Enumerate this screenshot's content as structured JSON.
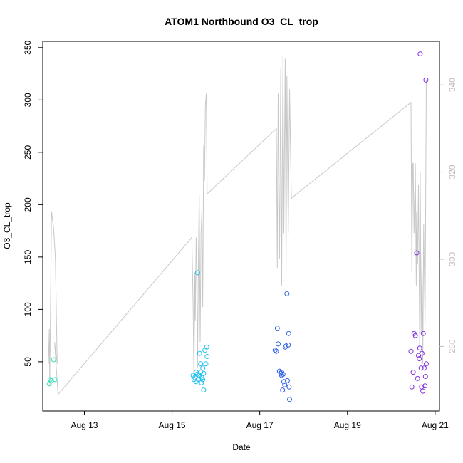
{
  "chart_data": {
    "type": "scatter",
    "title": "ATOM1 Northbound O3_CL_trop",
    "xlabel": "Date",
    "ylabel": "O3_CL_trop",
    "x_unit": "day of August 2016",
    "xlim": [
      12.05,
      21.1
    ],
    "ylim": [
      3,
      356
    ],
    "y2lim": [
      265.2,
      350.0
    ],
    "x_ticks": [
      {
        "value": 13,
        "label": "Aug 13"
      },
      {
        "value": 15,
        "label": "Aug 15"
      },
      {
        "value": 17,
        "label": "Aug 17"
      },
      {
        "value": 19,
        "label": "Aug 19"
      },
      {
        "value": 21,
        "label": "Aug 21"
      }
    ],
    "y_ticks": [
      50,
      100,
      150,
      200,
      250,
      300,
      350
    ],
    "y2_ticks": [
      280,
      300,
      320,
      340
    ],
    "grid": false,
    "colors": {
      "line": "#c8c8c8",
      "axis": "#000000",
      "right_axis": "#bdbdbd"
    },
    "scatter_series": [
      {
        "color": "#33e0b8",
        "points": [
          [
            12.2,
            29
          ],
          [
            12.22,
            33
          ],
          [
            12.25,
            32
          ],
          [
            12.3,
            52
          ],
          [
            12.33,
            33
          ]
        ]
      },
      {
        "color": "#1ec0f0",
        "points": [
          [
            15.48,
            37
          ],
          [
            15.5,
            33
          ],
          [
            15.52,
            35
          ],
          [
            15.55,
            31
          ],
          [
            15.57,
            38
          ],
          [
            15.6,
            33
          ],
          [
            15.62,
            37
          ],
          [
            15.65,
            40
          ],
          [
            15.68,
            35
          ],
          [
            15.7,
            33
          ],
          [
            15.72,
            39
          ],
          [
            15.55,
            40
          ],
          [
            15.58,
            135
          ],
          [
            15.63,
            58
          ],
          [
            15.65,
            48
          ],
          [
            15.67,
            30
          ],
          [
            15.7,
            44
          ],
          [
            15.72,
            23
          ],
          [
            15.75,
            61
          ],
          [
            15.77,
            48
          ],
          [
            15.79,
            64
          ],
          [
            15.8,
            55
          ]
        ]
      },
      {
        "color": "#2e5fe8",
        "points": [
          [
            17.35,
            61
          ],
          [
            17.38,
            60
          ],
          [
            17.4,
            82
          ],
          [
            17.42,
            67
          ],
          [
            17.45,
            41
          ],
          [
            17.48,
            39
          ],
          [
            17.5,
            37
          ],
          [
            17.52,
            23
          ],
          [
            17.55,
            31
          ],
          [
            17.58,
            64
          ],
          [
            17.6,
            65
          ],
          [
            17.62,
            115
          ],
          [
            17.63,
            32
          ],
          [
            17.65,
            66
          ],
          [
            17.66,
            77
          ],
          [
            17.67,
            26
          ],
          [
            17.68,
            14
          ],
          [
            17.5,
            40
          ],
          [
            17.53,
            38
          ],
          [
            17.57,
            28
          ]
        ]
      },
      {
        "color": "#8030e0",
        "points": [
          [
            20.45,
            60
          ],
          [
            20.47,
            26
          ],
          [
            20.5,
            40
          ],
          [
            20.52,
            77
          ],
          [
            20.55,
            75
          ],
          [
            20.58,
            154
          ],
          [
            20.6,
            34
          ],
          [
            20.62,
            56
          ],
          [
            20.64,
            53
          ],
          [
            20.65,
            63
          ],
          [
            20.66,
            344
          ],
          [
            20.68,
            44
          ],
          [
            20.69,
            26
          ],
          [
            20.7,
            58
          ],
          [
            20.72,
            22
          ],
          [
            20.73,
            77
          ],
          [
            20.75,
            44
          ],
          [
            20.77,
            27
          ],
          [
            20.78,
            36
          ],
          [
            20.79,
            319
          ],
          [
            20.8,
            48
          ]
        ]
      }
    ],
    "line_series": {
      "axis": "right",
      "points": [
        [
          12.18,
          276
        ],
        [
          12.2,
          284
        ],
        [
          12.21,
          271
        ],
        [
          12.25,
          311
        ],
        [
          12.3,
          307
        ],
        [
          12.34,
          300
        ],
        [
          12.38,
          276
        ],
        [
          12.32,
          281
        ],
        [
          12.4,
          269
        ],
        [
          15.45,
          305
        ],
        [
          15.48,
          290
        ],
        [
          15.5,
          272
        ],
        [
          15.52,
          297
        ],
        [
          15.53,
          286
        ],
        [
          15.55,
          305
        ],
        [
          15.56,
          302
        ],
        [
          15.58,
          275
        ],
        [
          15.6,
          299
        ],
        [
          15.62,
          315
        ],
        [
          15.64,
          281
        ],
        [
          15.66,
          306
        ],
        [
          15.68,
          311
        ],
        [
          15.7,
          289
        ],
        [
          15.72,
          326
        ],
        [
          15.74,
          318
        ],
        [
          15.76,
          335
        ],
        [
          15.78,
          338
        ],
        [
          15.8,
          315
        ],
        [
          17.38,
          330
        ],
        [
          17.4,
          298
        ],
        [
          17.42,
          338
        ],
        [
          17.45,
          300
        ],
        [
          17.48,
          344
        ],
        [
          17.5,
          294
        ],
        [
          17.53,
          347
        ],
        [
          17.55,
          306
        ],
        [
          17.58,
          346
        ],
        [
          17.6,
          297
        ],
        [
          17.62,
          342
        ],
        [
          17.65,
          306
        ],
        [
          17.68,
          339
        ],
        [
          17.72,
          314
        ],
        [
          20.45,
          336
        ],
        [
          20.47,
          297
        ],
        [
          20.49,
          322
        ],
        [
          20.5,
          322
        ],
        [
          20.52,
          306
        ],
        [
          20.55,
          322
        ],
        [
          20.57,
          294
        ],
        [
          20.58,
          311
        ],
        [
          20.6,
          299
        ],
        [
          20.62,
          317
        ],
        [
          20.65,
          278
        ],
        [
          20.66,
          320
        ],
        [
          20.68,
          283
        ],
        [
          20.7,
          301
        ],
        [
          20.72,
          276
        ],
        [
          20.74,
          308
        ],
        [
          20.77,
          285
        ],
        [
          20.8,
          341
        ]
      ]
    }
  }
}
